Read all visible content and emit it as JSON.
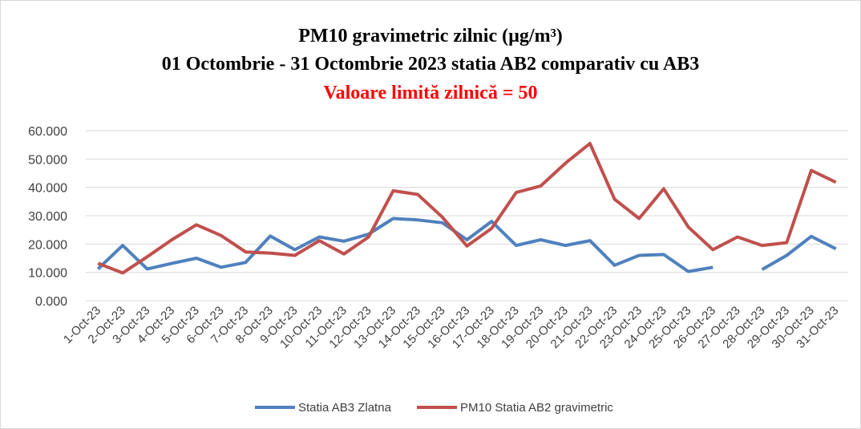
{
  "chart_data": {
    "type": "line",
    "title": "PM10 gravimetric zilnic (µg/m³)",
    "subtitle": "01 Octombrie  - 31 Octombrie 2023 statia AB2 comparativ cu AB3",
    "annotation": "Valoare limită zilnică = 50",
    "annotation_color": "#ff0000",
    "categories": [
      "1-Oct-23",
      "2-Oct-23",
      "3-Oct-23",
      "4-Oct-23",
      "5-Oct-23",
      "6-Oct-23",
      "7-Oct-23",
      "8-Oct-23",
      "9-Oct-23",
      "10-Oct-23",
      "11-Oct-23",
      "12-Oct-23",
      "13-Oct-23",
      "14-Oct-23",
      "15-Oct-23",
      "16-Oct-23",
      "17-Oct-23",
      "18-Oct-23",
      "19-Oct-23",
      "20-Oct-23",
      "21-Oct-23",
      "22-Oct-23",
      "23-Oct-23",
      "24-Oct-23",
      "25-Oct-23",
      "26-Oct-23",
      "27-Oct-23",
      "28-Oct-23",
      "29-Oct-23",
      "30-Oct-23",
      "31-Oct-23"
    ],
    "series": [
      {
        "name": "Statia AB3 Zlatna",
        "color": "#4f81bd",
        "values": [
          11.2,
          19.5,
          11.2,
          13.2,
          15.0,
          11.8,
          13.5,
          22.8,
          18.0,
          22.5,
          21.0,
          23.5,
          29.0,
          28.5,
          27.5,
          21.5,
          28.0,
          19.5,
          21.5,
          19.5,
          21.2,
          12.5,
          16.0,
          16.3,
          10.3,
          11.8,
          null,
          11.0,
          16.0,
          22.7,
          18.3
        ]
      },
      {
        "name": "PM10 Statia AB2  gravimetric",
        "color": "#c0504d",
        "values": [
          13.2,
          9.8,
          15.5,
          21.5,
          26.8,
          23.0,
          17.2,
          16.8,
          16.0,
          21.2,
          16.5,
          22.5,
          38.8,
          37.5,
          29.5,
          19.3,
          25.5,
          38.2,
          40.5,
          48.5,
          55.5,
          35.8,
          29.0,
          39.5,
          26.0,
          18.0,
          22.5,
          19.5,
          20.5,
          46.0,
          41.8
        ]
      }
    ],
    "ylim": [
      0,
      60
    ],
    "yticks": [
      {
        "value": 0,
        "label": "0.000"
      },
      {
        "value": 10,
        "label": "10.000"
      },
      {
        "value": 20,
        "label": "20.000"
      },
      {
        "value": 30,
        "label": "30.000"
      },
      {
        "value": 40,
        "label": "40.000"
      },
      {
        "value": 50,
        "label": "50.000"
      },
      {
        "value": 60,
        "label": "60.000"
      }
    ],
    "grid": true,
    "legend": "bottom"
  }
}
